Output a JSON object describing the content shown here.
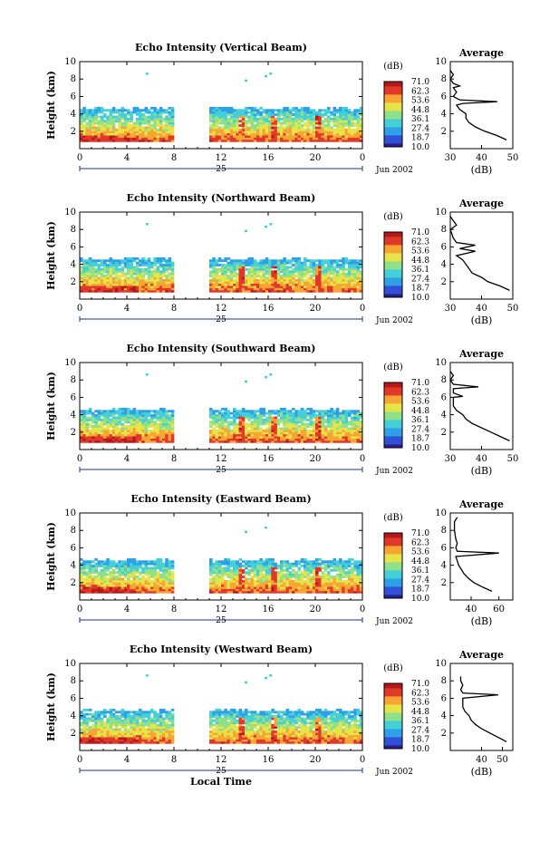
{
  "figure": {
    "date_label": "Jun 2002",
    "day_label": "25",
    "xaxis_label": "Local Time",
    "yaxis_label": "Height (km)",
    "colorbar_unit": "(dB)",
    "colorbar_ticks": [
      "71.0",
      "62.3",
      "53.6",
      "44.8",
      "36.1",
      "27.4",
      "18.7",
      "10.0"
    ],
    "colorbar_colors": [
      "#2a1e8c",
      "#3050d8",
      "#2fa0e6",
      "#45cfd8",
      "#8fe08a",
      "#e7e44a",
      "#f7a533",
      "#e0382a",
      "#b51818"
    ]
  },
  "chart_data": [
    {
      "type": "heatmap",
      "title": "Echo Intensity (Vertical Beam)",
      "xlabel": "",
      "ylabel": "Height (km)",
      "xlim": [
        0,
        24
      ],
      "ylim": [
        0,
        10
      ],
      "xticks": [
        "0",
        "4",
        "8",
        "12",
        "16",
        "20",
        "0"
      ],
      "yticks": [
        "2",
        "4",
        "6",
        "8",
        "10"
      ],
      "data_gaps_hours": [
        [
          8,
          10.8
        ]
      ],
      "cloud_top_km": 4.3,
      "colorbar": {
        "min": 10.0,
        "max": 71.0,
        "unit": "dB"
      },
      "profile": {
        "type": "line",
        "title": "Average",
        "xlabel": "(dB)",
        "xlim": [
          30,
          50
        ],
        "xticks": [
          "30",
          "40",
          "50"
        ],
        "ylim": [
          0,
          10
        ],
        "yticks": [
          "2",
          "4",
          "6",
          "8",
          "10"
        ],
        "points": [
          [
            48,
            1
          ],
          [
            45,
            1.5
          ],
          [
            41,
            2
          ],
          [
            38,
            2.5
          ],
          [
            36,
            3
          ],
          [
            35,
            3.5
          ],
          [
            35,
            4
          ],
          [
            33,
            4.5
          ],
          [
            32,
            5
          ],
          [
            34,
            5.2
          ],
          [
            45,
            5.4
          ],
          [
            33,
            5.6
          ],
          [
            31,
            6
          ],
          [
            32,
            6.5
          ],
          [
            31,
            7
          ],
          [
            33,
            7.2
          ],
          [
            31,
            7.5
          ],
          [
            30,
            8
          ],
          [
            31,
            8.5
          ],
          [
            30,
            9
          ]
        ]
      }
    },
    {
      "type": "heatmap",
      "title": "Echo Intensity (Northward Beam)",
      "xlabel": "",
      "ylabel": "Height (km)",
      "xlim": [
        0,
        24
      ],
      "ylim": [
        0,
        10
      ],
      "xticks": [
        "0",
        "4",
        "8",
        "12",
        "16",
        "20",
        "0"
      ],
      "yticks": [
        "2",
        "4",
        "6",
        "8",
        "10"
      ],
      "data_gaps_hours": [
        [
          8,
          10.8
        ]
      ],
      "cloud_top_km": 4.3,
      "colorbar": {
        "min": 10.0,
        "max": 71.0,
        "unit": "dB"
      },
      "profile": {
        "type": "line",
        "title": "Average",
        "xlabel": "(dB)",
        "xlim": [
          30,
          50
        ],
        "xticks": [
          "30",
          "40",
          "50"
        ],
        "ylim": [
          0,
          10
        ],
        "yticks": [
          "2",
          "4",
          "6",
          "8",
          "10"
        ],
        "points": [
          [
            49,
            1
          ],
          [
            46,
            1.5
          ],
          [
            42,
            2
          ],
          [
            40,
            2.5
          ],
          [
            37,
            3
          ],
          [
            36,
            3.5
          ],
          [
            35,
            4
          ],
          [
            34,
            4.5
          ],
          [
            32,
            5
          ],
          [
            38,
            5.5
          ],
          [
            33,
            5.8
          ],
          [
            38,
            6.2
          ],
          [
            32,
            6.5
          ],
          [
            31,
            7
          ],
          [
            30,
            8
          ],
          [
            32,
            8.5
          ],
          [
            31,
            9
          ],
          [
            30,
            9.5
          ]
        ]
      }
    },
    {
      "type": "heatmap",
      "title": "Echo Intensity (Southward Beam)",
      "xlabel": "",
      "ylabel": "Height (km)",
      "xlim": [
        0,
        24
      ],
      "ylim": [
        0,
        10
      ],
      "xticks": [
        "0",
        "4",
        "8",
        "12",
        "16",
        "20",
        "0"
      ],
      "yticks": [
        "2",
        "4",
        "6",
        "8",
        "10"
      ],
      "data_gaps_hours": [
        [
          8,
          10.8
        ]
      ],
      "cloud_top_km": 4.3,
      "colorbar": {
        "min": 10.0,
        "max": 71.0,
        "unit": "dB"
      },
      "profile": {
        "type": "line",
        "title": "Average",
        "xlabel": "(dB)",
        "xlim": [
          30,
          50
        ],
        "xticks": [
          "30",
          "40",
          "50"
        ],
        "ylim": [
          0,
          10
        ],
        "yticks": [
          "2",
          "4",
          "6",
          "8",
          "10"
        ],
        "points": [
          [
            49,
            1
          ],
          [
            46,
            1.5
          ],
          [
            43,
            2
          ],
          [
            40,
            2.5
          ],
          [
            37,
            3
          ],
          [
            35,
            3.5
          ],
          [
            34,
            4
          ],
          [
            32,
            4.5
          ],
          [
            31,
            5
          ],
          [
            31,
            5.5
          ],
          [
            31,
            6
          ],
          [
            34,
            6.1
          ],
          [
            31,
            6.5
          ],
          [
            31,
            7
          ],
          [
            39,
            7.2
          ],
          [
            31,
            7.5
          ],
          [
            30,
            8
          ],
          [
            31,
            8.5
          ],
          [
            30,
            9
          ]
        ]
      }
    },
    {
      "type": "heatmap",
      "title": "Echo Intensity (Eastward Beam)",
      "xlabel": "",
      "ylabel": "Height (km)",
      "xlim": [
        0,
        24
      ],
      "ylim": [
        0,
        10
      ],
      "xticks": [
        "0",
        "4",
        "8",
        "12",
        "16",
        "20",
        "0"
      ],
      "yticks": [
        "2",
        "4",
        "6",
        "8",
        "10"
      ],
      "data_gaps_hours": [
        [
          8,
          10.8
        ]
      ],
      "cloud_top_km": 4.3,
      "colorbar": {
        "min": 10.0,
        "max": 71.0,
        "unit": "dB"
      },
      "profile": {
        "type": "line",
        "title": "Average",
        "xlabel": "(dB)",
        "xlim": [
          25,
          70
        ],
        "xticks": [
          "40",
          "60"
        ],
        "ylim": [
          0,
          10
        ],
        "yticks": [
          "2",
          "4",
          "6",
          "8",
          "10"
        ],
        "points": [
          [
            55,
            1
          ],
          [
            48,
            1.5
          ],
          [
            42,
            2
          ],
          [
            38,
            2.5
          ],
          [
            35,
            3
          ],
          [
            33,
            3.5
          ],
          [
            31,
            4
          ],
          [
            30,
            4.5
          ],
          [
            29,
            5
          ],
          [
            60,
            5.4
          ],
          [
            30,
            5.6
          ],
          [
            29,
            6
          ],
          [
            30,
            6.5
          ],
          [
            29,
            7
          ],
          [
            28,
            8
          ],
          [
            28,
            9
          ],
          [
            30,
            9.5
          ]
        ]
      }
    },
    {
      "type": "heatmap",
      "title": "Echo Intensity (Westward Beam)",
      "xlabel": "Local Time",
      "ylabel": "Height (km)",
      "xlim": [
        0,
        24
      ],
      "ylim": [
        0,
        10
      ],
      "xticks": [
        "0",
        "4",
        "8",
        "12",
        "16",
        "20",
        "0"
      ],
      "yticks": [
        "2",
        "4",
        "6",
        "8",
        "10"
      ],
      "data_gaps_hours": [
        [
          8,
          10.8
        ]
      ],
      "cloud_top_km": 4.3,
      "colorbar": {
        "min": 10.0,
        "max": 71.0,
        "unit": "dB"
      },
      "profile": {
        "type": "line",
        "title": "Average",
        "xlabel": "(dB)",
        "xlim": [
          25,
          55
        ],
        "xticks": [
          "40",
          "50"
        ],
        "ylim": [
          0,
          10
        ],
        "yticks": [
          "2",
          "4",
          "6",
          "8",
          "10"
        ],
        "points": [
          [
            52,
            1
          ],
          [
            48,
            1.5
          ],
          [
            44,
            2
          ],
          [
            40,
            2.5
          ],
          [
            37,
            3
          ],
          [
            35,
            3.5
          ],
          [
            34,
            4
          ],
          [
            32,
            4.5
          ],
          [
            31,
            5
          ],
          [
            31,
            5.5
          ],
          [
            31,
            6
          ],
          [
            48,
            6.4
          ],
          [
            31,
            6.6
          ],
          [
            30,
            7
          ],
          [
            31,
            7.5
          ],
          [
            30,
            8
          ],
          [
            30,
            8.5
          ]
        ]
      }
    }
  ]
}
